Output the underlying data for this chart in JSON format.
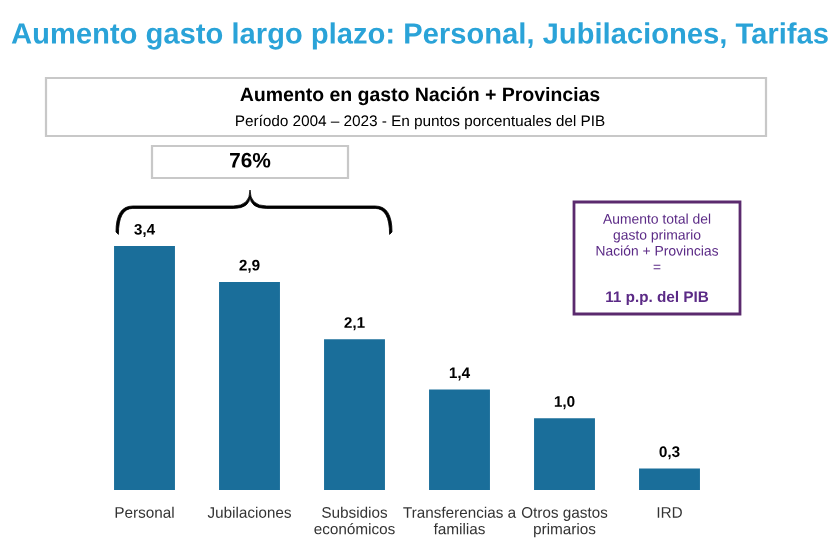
{
  "chart_data": {
    "type": "bar",
    "title": "Aumento gasto largo plazo: Personal, Jubilaciones, Tarifas",
    "subtitle": "Aumento en gasto Nación + Provincias",
    "categories": [
      "Personal",
      "Jubilaciones",
      "Subsidios\neconómicos",
      "Transferencias a\nfamilias",
      "Otros gastos\nprimarios",
      "IRD"
    ],
    "values": [
      3.4,
      2.9,
      2.1,
      1.4,
      1.0,
      0.3
    ],
    "value_labels": [
      "3,4",
      "2,9",
      "2,1",
      "1,4",
      "1,0",
      "0,3"
    ],
    "color": "#1a6e9a",
    "annotations": [
      "Período 2004 – 2023 - En puntos porcentuales del PIB",
      "76%",
      "Aumento total del\ngasto primario\nNación + Provincias\n=",
      "11 p.p. del PIB"
    ]
  }
}
